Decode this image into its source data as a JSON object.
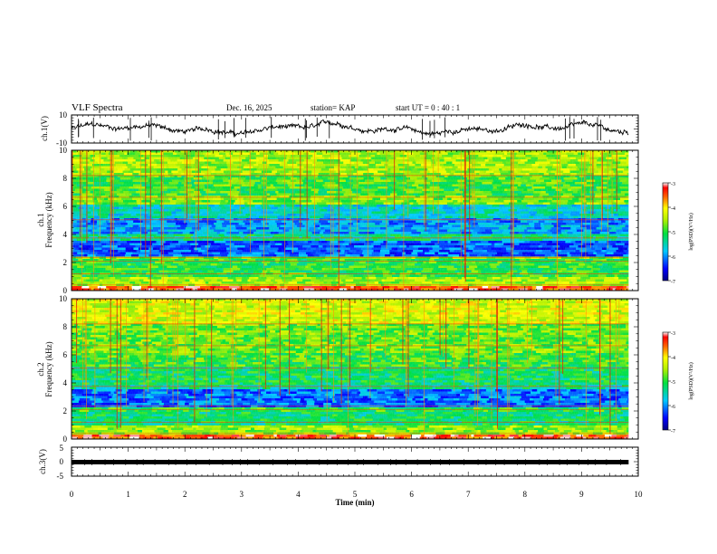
{
  "chart_data": {
    "type": "heatmap",
    "header": {
      "title": "VLF Spectra",
      "date": "Dec. 16, 2025",
      "station": "station= KAP",
      "start": "start  UT =   0 : 40 : 1"
    },
    "time_axis": {
      "label": "Time  (min)",
      "range": [
        0,
        10
      ],
      "ticks": [
        "0",
        "1",
        "2",
        "3",
        "4",
        "5",
        "6",
        "7",
        "8",
        "9",
        "10"
      ],
      "data_end": 9.83
    },
    "panels": [
      {
        "kind": "waveform",
        "ylabel": "ch.1(V)",
        "ylim": [
          -10,
          10
        ],
        "ticks": [
          "10",
          "-10"
        ]
      },
      {
        "kind": "spectrogram",
        "ylabel_line1": "ch.1",
        "ylabel_line2": "Frequency  (kHz)",
        "ylim": [
          0,
          10
        ],
        "ticks": [
          "0",
          "2",
          "4",
          "6",
          "8",
          "10"
        ],
        "colorbar": {
          "label": "log(PSD)(V²/Hz)",
          "range": [
            -7,
            -3
          ],
          "ticks": [
            "-3",
            "-4",
            "-5",
            "-6",
            "-7"
          ]
        }
      },
      {
        "kind": "spectrogram",
        "ylabel_line1": "ch.2",
        "ylabel_line2": "Frequency  (kHz)",
        "ylim": [
          0,
          10
        ],
        "ticks": [
          "0",
          "2",
          "4",
          "6",
          "8",
          "10"
        ],
        "colorbar": {
          "label": "log(PSD)(V²/Hz)",
          "range": [
            -7,
            -3
          ],
          "ticks": [
            "-3",
            "-4",
            "-5",
            "-6",
            "-7"
          ]
        }
      },
      {
        "kind": "waveform",
        "ylabel": "ch.3(V)",
        "ylim": [
          -5,
          5
        ],
        "ticks": [
          "5",
          "0",
          "-5"
        ]
      }
    ]
  }
}
